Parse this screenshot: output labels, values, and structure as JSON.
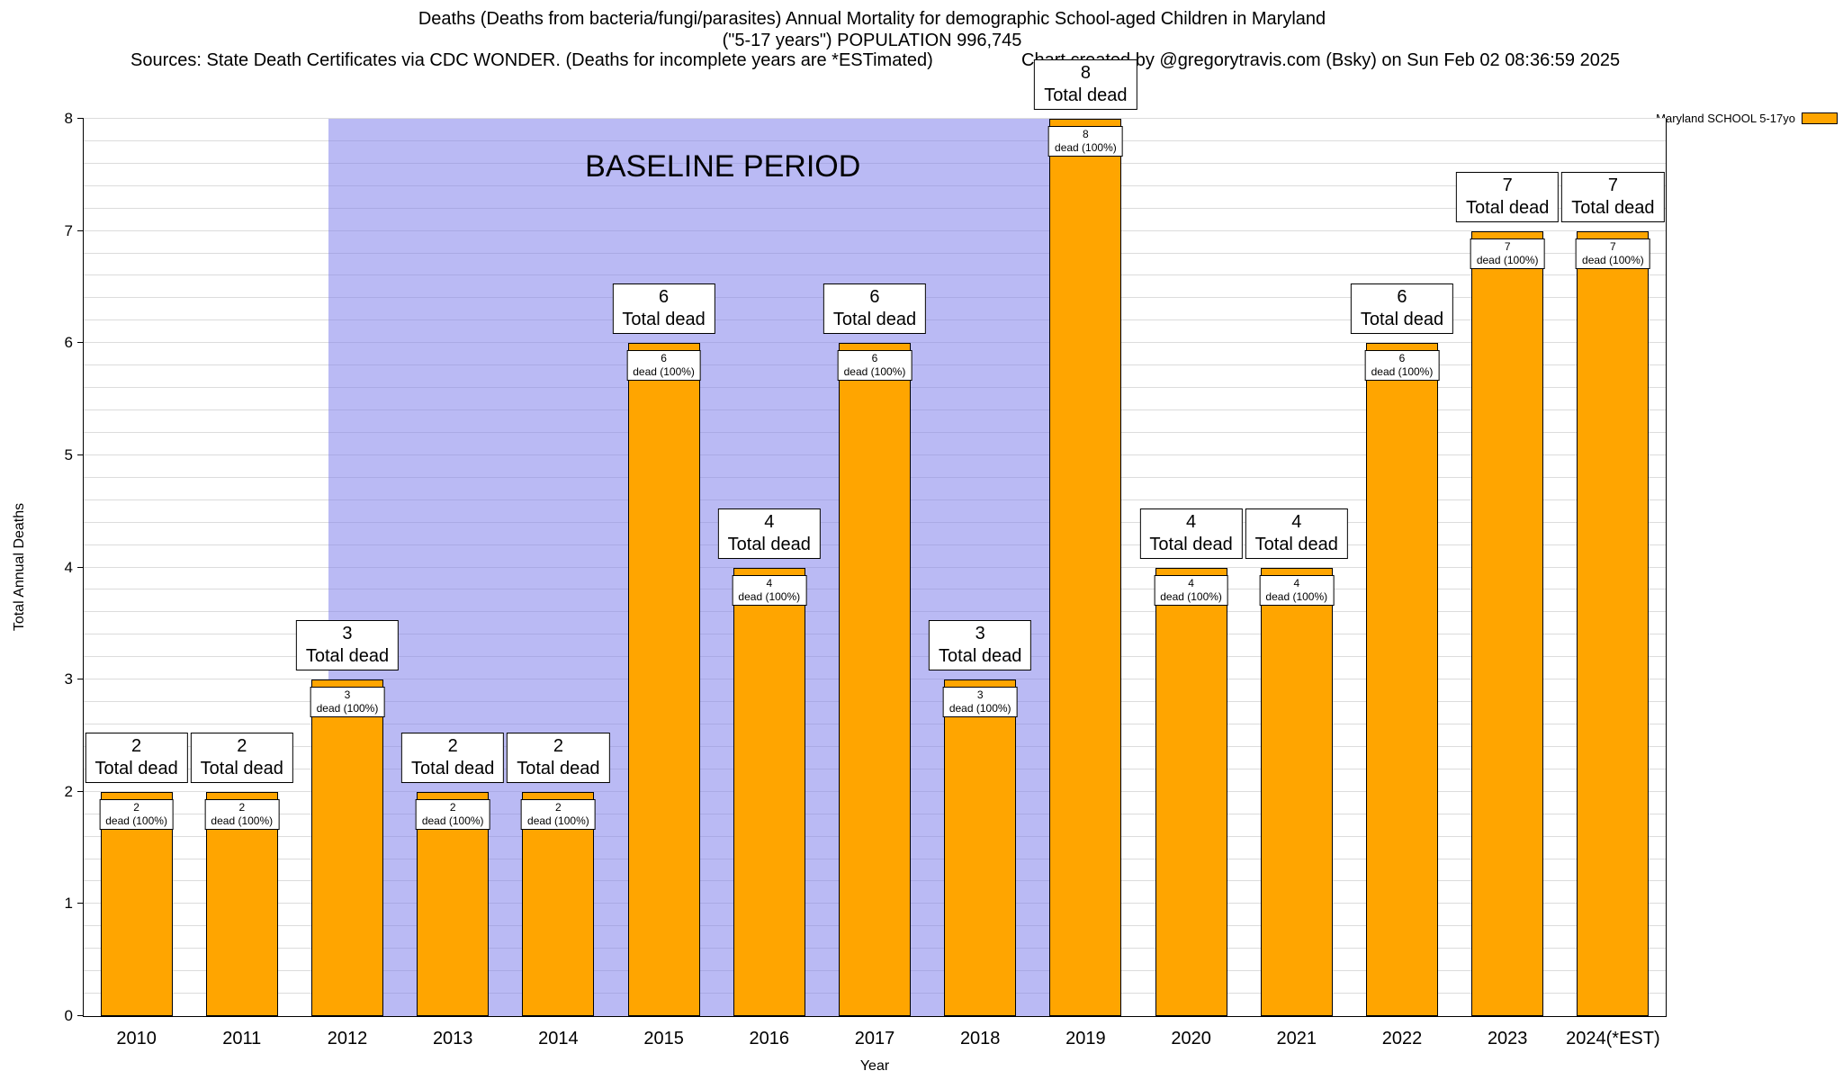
{
  "header": {
    "title_line1": "Deaths (Deaths from bacteria/fungi/parasites) Annual Mortality for demographic School-aged Children in Maryland",
    "title_line2": "(\"5-17 years\") POPULATION 996,745",
    "sources": "Sources: State Death Certificates via CDC WONDER. (Deaths for incomplete years are *ESTimated)",
    "credit": "Chart created by @gregorytravis.com (Bsky) on Sun Feb 02 08:36:59 2025"
  },
  "legend": {
    "label": "Maryland SCHOOL 5-17yo",
    "swatch_color": "#FFA500"
  },
  "chart_data": {
    "type": "bar",
    "title": "Deaths (Deaths from bacteria/fungi/parasites) Annual Mortality for demographic School-aged Children in Maryland (\"5-17 years\") POPULATION 996,745",
    "xlabel": "Year",
    "ylabel": "Total Annual Deaths",
    "ylim": [
      0,
      8
    ],
    "y_tick_values": [
      0,
      1,
      2,
      3,
      4,
      5,
      6,
      7,
      8
    ],
    "y_minor_tick": 0.2,
    "grid": true,
    "legend_position": "top-right",
    "categories": [
      "2010",
      "2011",
      "2012",
      "2013",
      "2014",
      "2015",
      "2016",
      "2017",
      "2018",
      "2019",
      "2020",
      "2021",
      "2022",
      "2023",
      "2024(*EST)"
    ],
    "values": [
      2,
      2,
      3,
      2,
      2,
      6,
      4,
      6,
      3,
      8,
      4,
      4,
      6,
      7,
      7
    ],
    "series_name": "Maryland SCHOOL 5-17yo",
    "bar_color": "#FFA500",
    "bar_border": "#000000",
    "annotations": {
      "top_line2": "Total dead",
      "inner_line2": "dead (100%)"
    },
    "baseline_band": {
      "label": "BASELINE PERIOD",
      "start_category": "2012",
      "end_category": "2019",
      "color": "rgba(130,130,235,0.55)"
    }
  }
}
